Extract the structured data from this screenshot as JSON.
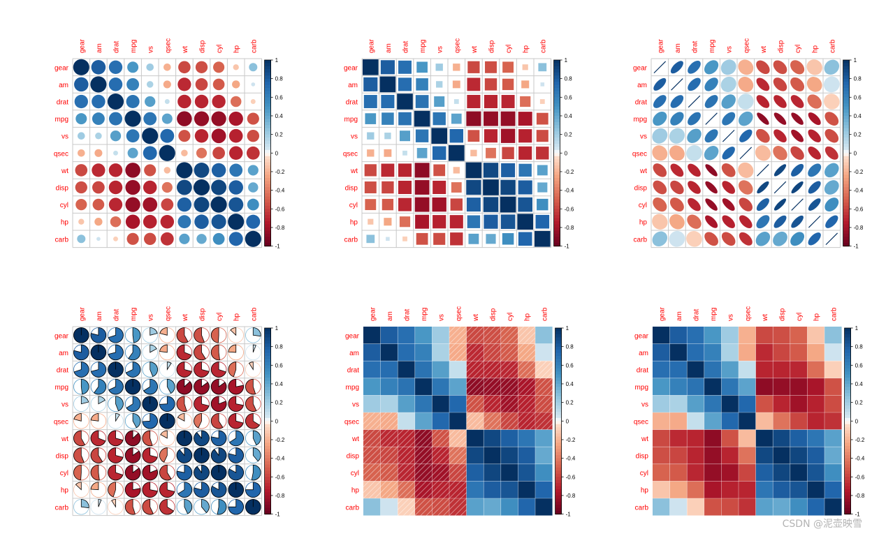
{
  "variables": [
    "gear",
    "am",
    "drat",
    "mpg",
    "vs",
    "qsec",
    "wt",
    "disp",
    "cyl",
    "hp",
    "carb"
  ],
  "label_color": "#ff0000",
  "watermark": "CSDN @泥壶映雪",
  "colorbar_ticks": [
    "1",
    "0.8",
    "0.6",
    "0.4",
    "0.2",
    "0",
    "-0.2",
    "-0.4",
    "-0.6",
    "-0.8",
    "-1"
  ],
  "chart_data": [
    {
      "type": "heatmap",
      "method": "circle",
      "order": "hclust",
      "range": [
        -1,
        1
      ]
    },
    {
      "type": "heatmap",
      "method": "square",
      "order": "hclust",
      "range": [
        -1,
        1
      ]
    },
    {
      "type": "heatmap",
      "method": "ellipse",
      "order": "hclust",
      "range": [
        -1,
        1
      ]
    },
    {
      "type": "heatmap",
      "method": "pie",
      "order": "hclust",
      "range": [
        -1,
        1
      ]
    },
    {
      "type": "heatmap",
      "method": "shade",
      "order": "hclust",
      "range": [
        -1,
        1
      ]
    },
    {
      "type": "heatmap",
      "method": "color",
      "order": "hclust",
      "range": [
        -1,
        1
      ]
    }
  ],
  "correlation_matrix": [
    [
      1.0,
      0.79,
      0.7,
      0.48,
      0.21,
      -0.21,
      -0.58,
      -0.56,
      -0.49,
      -0.13,
      0.27
    ],
    [
      0.79,
      1.0,
      0.71,
      0.6,
      0.17,
      -0.23,
      -0.69,
      -0.59,
      -0.52,
      -0.24,
      0.06
    ],
    [
      0.7,
      0.71,
      1.0,
      0.68,
      0.44,
      0.09,
      -0.71,
      -0.71,
      -0.7,
      -0.45,
      -0.09
    ],
    [
      0.48,
      0.6,
      0.68,
      1.0,
      0.66,
      0.42,
      -0.87,
      -0.85,
      -0.85,
      -0.78,
      -0.55
    ],
    [
      0.21,
      0.17,
      0.44,
      0.66,
      1.0,
      0.74,
      -0.55,
      -0.71,
      -0.81,
      -0.72,
      -0.57
    ],
    [
      -0.21,
      -0.23,
      0.09,
      0.42,
      0.74,
      1.0,
      -0.17,
      -0.43,
      -0.59,
      -0.71,
      -0.66
    ],
    [
      -0.58,
      -0.69,
      -0.71,
      -0.87,
      -0.55,
      -0.17,
      1.0,
      0.89,
      0.78,
      0.66,
      0.43
    ],
    [
      -0.56,
      -0.59,
      -0.71,
      -0.85,
      -0.71,
      -0.43,
      0.89,
      1.0,
      0.9,
      0.79,
      0.39
    ],
    [
      -0.49,
      -0.52,
      -0.7,
      -0.85,
      -0.81,
      -0.59,
      0.78,
      0.9,
      1.0,
      0.83,
      0.53
    ],
    [
      -0.13,
      -0.24,
      -0.45,
      -0.78,
      -0.72,
      -0.71,
      0.66,
      0.79,
      0.83,
      1.0,
      0.75
    ],
    [
      0.27,
      0.06,
      -0.09,
      -0.55,
      -0.57,
      -0.66,
      0.43,
      0.39,
      0.53,
      0.75,
      1.0
    ]
  ]
}
